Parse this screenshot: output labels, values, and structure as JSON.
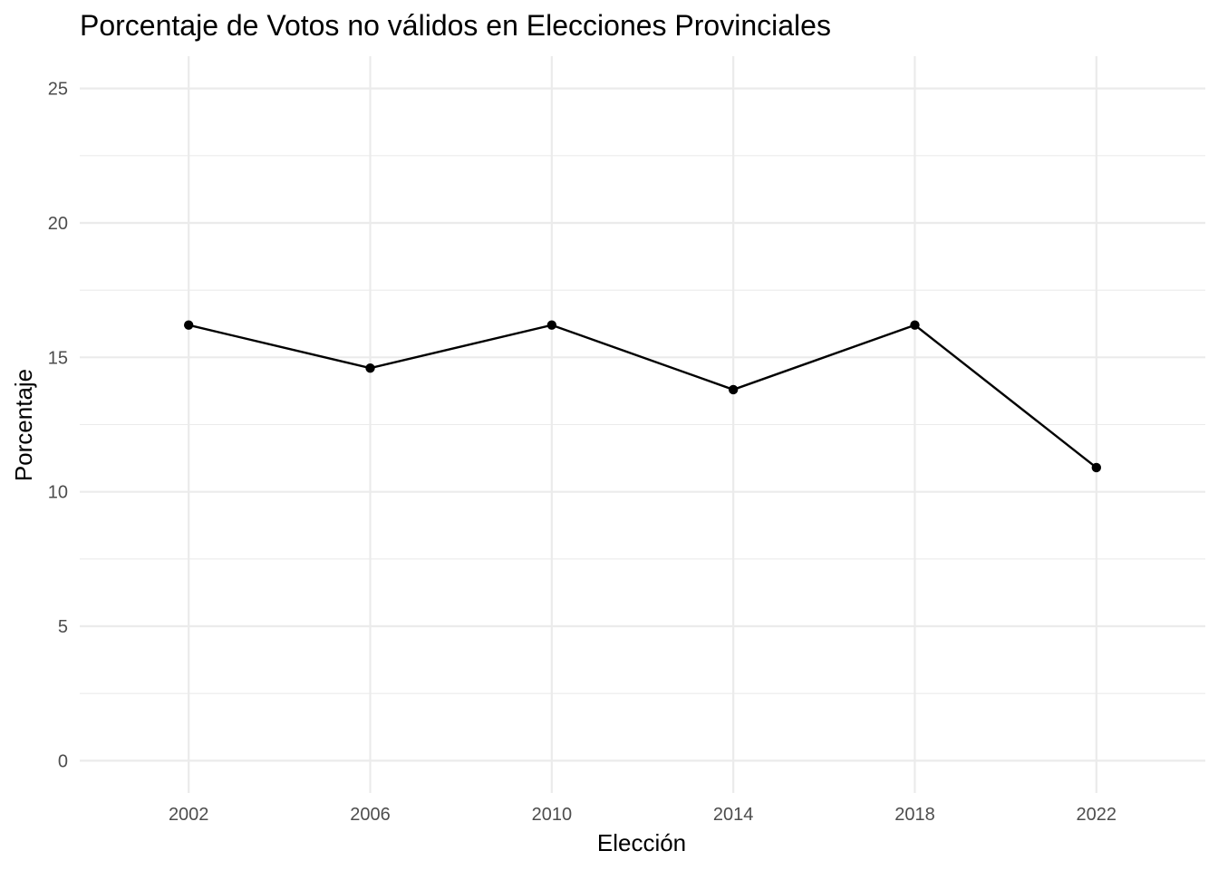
{
  "chart_data": {
    "type": "line",
    "title": "Porcentaje de Votos no válidos en Elecciones Provinciales",
    "xlabel": "Elección",
    "ylabel": "Porcentaje",
    "x": [
      2002,
      2006,
      2010,
      2014,
      2018,
      2022
    ],
    "x_tick_labels": [
      "2002",
      "2006",
      "2010",
      "2014",
      "2018",
      "2022"
    ],
    "series": [
      {
        "values": [
          16.2,
          14.6,
          16.2,
          13.8,
          16.2,
          10.9
        ]
      }
    ],
    "xlim": [
      1999.6,
      2024.4
    ],
    "ylim": [
      -1.2,
      26.2
    ],
    "y_ticks": [
      0,
      5,
      10,
      15,
      20,
      25
    ],
    "y_tick_labels": [
      "0",
      "5",
      "10",
      "15",
      "20",
      "25"
    ],
    "grid": true,
    "legend": "none",
    "colors": {
      "line": "#000000",
      "grid": "#ebebeb",
      "background": "#ffffff",
      "tick_text": "#4d4d4d"
    }
  }
}
